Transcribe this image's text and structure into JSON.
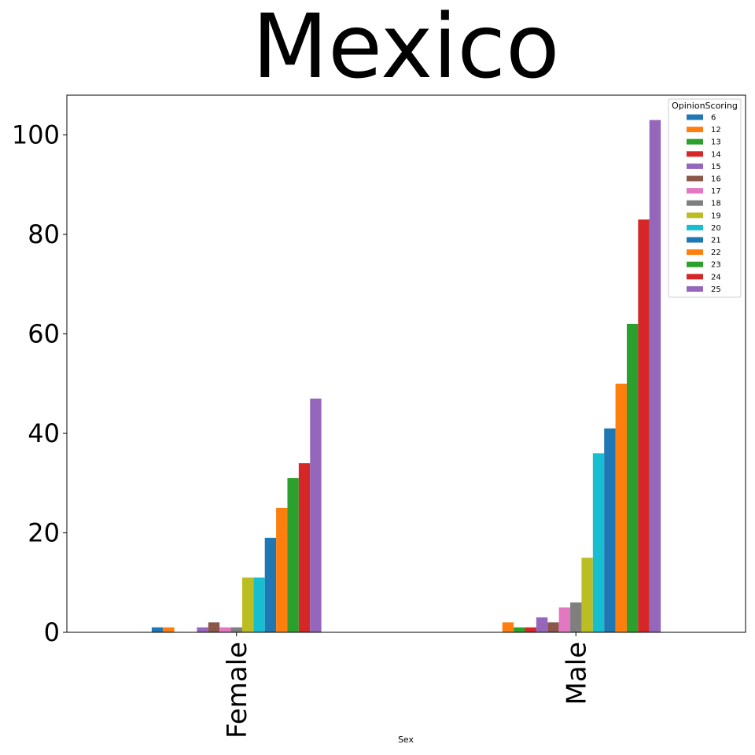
{
  "chart_data": {
    "type": "bar",
    "title": "Mexico",
    "xlabel": "Sex",
    "ylabel": "",
    "categories": [
      "Female",
      "Male"
    ],
    "ylim": [
      0,
      108
    ],
    "yticks": [
      0,
      20,
      40,
      60,
      80,
      100
    ],
    "grid": false,
    "legend": {
      "title": "OpinionScoring",
      "placement": "top-right"
    },
    "series": [
      {
        "name": "6",
        "color": "#1f77b4",
        "values": [
          1,
          0
        ]
      },
      {
        "name": "12",
        "color": "#ff7f0e",
        "values": [
          1,
          2
        ]
      },
      {
        "name": "13",
        "color": "#2ca02c",
        "values": [
          0,
          1
        ]
      },
      {
        "name": "14",
        "color": "#d62728",
        "values": [
          0,
          1
        ]
      },
      {
        "name": "15",
        "color": "#9467bd",
        "values": [
          1,
          3
        ]
      },
      {
        "name": "16",
        "color": "#8c564b",
        "values": [
          2,
          2
        ]
      },
      {
        "name": "17",
        "color": "#e377c2",
        "values": [
          1,
          5
        ]
      },
      {
        "name": "18",
        "color": "#7f7f7f",
        "values": [
          1,
          6
        ]
      },
      {
        "name": "19",
        "color": "#bcbd22",
        "values": [
          11,
          15
        ]
      },
      {
        "name": "20",
        "color": "#17becf",
        "values": [
          11,
          36
        ]
      },
      {
        "name": "21",
        "color": "#1f77b4",
        "values": [
          19,
          41
        ]
      },
      {
        "name": "22",
        "color": "#ff7f0e",
        "values": [
          25,
          50
        ]
      },
      {
        "name": "23",
        "color": "#2ca02c",
        "values": [
          31,
          62
        ]
      },
      {
        "name": "24",
        "color": "#d62728",
        "values": [
          34,
          83
        ]
      },
      {
        "name": "25",
        "color": "#9467bd",
        "values": [
          47,
          103
        ]
      }
    ]
  }
}
